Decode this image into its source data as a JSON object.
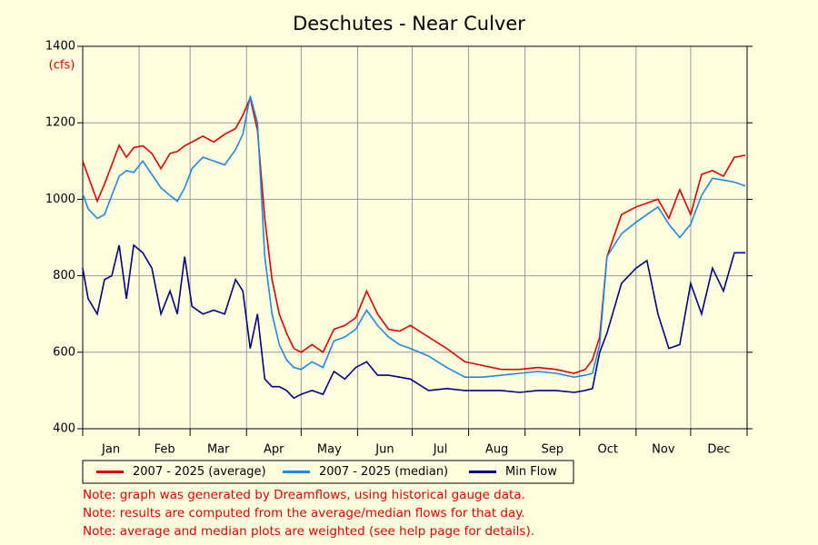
{
  "chart_data": {
    "type": "line",
    "title": "Deschutes - Near Culver",
    "y_unit": "(cfs)",
    "months": [
      "Jan",
      "Feb",
      "Mar",
      "Apr",
      "May",
      "Jun",
      "Jul",
      "Aug",
      "Sep",
      "Oct",
      "Nov",
      "Dec"
    ],
    "xlim": [
      0,
      365
    ],
    "xticks": [
      0,
      31,
      59,
      90,
      120,
      151,
      181,
      212,
      243,
      273,
      304,
      334,
      365
    ],
    "ylim": [
      400,
      1400
    ],
    "yticks": [
      400,
      600,
      800,
      1000,
      1200,
      1400
    ],
    "grid": true,
    "x": [
      0,
      3,
      8,
      12,
      16,
      20,
      24,
      28,
      33,
      38,
      43,
      48,
      52,
      56,
      60,
      66,
      72,
      78,
      84,
      88,
      92,
      96,
      100,
      104,
      108,
      112,
      116,
      120,
      126,
      132,
      138,
      144,
      150,
      156,
      162,
      168,
      174,
      180,
      190,
      200,
      210,
      220,
      230,
      240,
      250,
      260,
      270,
      276,
      280,
      284,
      288,
      296,
      304,
      310,
      316,
      322,
      328,
      334,
      340,
      346,
      352,
      358,
      364
    ],
    "series": [
      {
        "name": "2007 - 2025 (average)",
        "color": "#dd0000",
        "values": [
          1100,
          1060,
          995,
          1040,
          1090,
          1141,
          1110,
          1135,
          1140,
          1120,
          1080,
          1120,
          1125,
          1140,
          1150,
          1165,
          1150,
          1170,
          1185,
          1220,
          1265,
          1180,
          950,
          790,
          700,
          650,
          610,
          600,
          620,
          600,
          660,
          670,
          690,
          760,
          700,
          660,
          655,
          670,
          640,
          610,
          575,
          565,
          555,
          555,
          560,
          555,
          545,
          555,
          580,
          640,
          850,
          960,
          980,
          990,
          1000,
          950,
          1025,
          960,
          1065,
          1075,
          1060,
          1110,
          1115
        ]
      },
      {
        "name": "2007 - 2025 (median)",
        "color": "#2288dd",
        "values": [
          1015,
          975,
          950,
          960,
          1010,
          1060,
          1075,
          1070,
          1100,
          1065,
          1030,
          1010,
          995,
          1030,
          1080,
          1110,
          1100,
          1090,
          1130,
          1170,
          1270,
          1200,
          850,
          700,
          620,
          580,
          560,
          555,
          575,
          560,
          630,
          640,
          660,
          710,
          670,
          640,
          620,
          610,
          590,
          560,
          535,
          535,
          540,
          545,
          550,
          545,
          535,
          540,
          545,
          620,
          850,
          910,
          940,
          960,
          980,
          935,
          900,
          935,
          1010,
          1055,
          1050,
          1045,
          1035
        ]
      },
      {
        "name": "Min Flow",
        "color": "#000080",
        "values": [
          820,
          740,
          700,
          790,
          800,
          880,
          740,
          880,
          860,
          820,
          700,
          760,
          700,
          850,
          720,
          700,
          710,
          700,
          790,
          760,
          610,
          700,
          530,
          510,
          510,
          500,
          480,
          490,
          500,
          490,
          550,
          530,
          560,
          575,
          540,
          540,
          535,
          530,
          500,
          505,
          500,
          500,
          500,
          495,
          500,
          500,
          495,
          500,
          505,
          600,
          650,
          780,
          820,
          840,
          700,
          610,
          620,
          780,
          700,
          820,
          760,
          860,
          860
        ]
      }
    ],
    "notes": [
      "Note: graph was generated by Dreamflows, using historical gauge data.",
      "Note: results are computed from the average/median flows for that day.",
      "Note: average and median plots are weighted (see help page for details)."
    ]
  }
}
